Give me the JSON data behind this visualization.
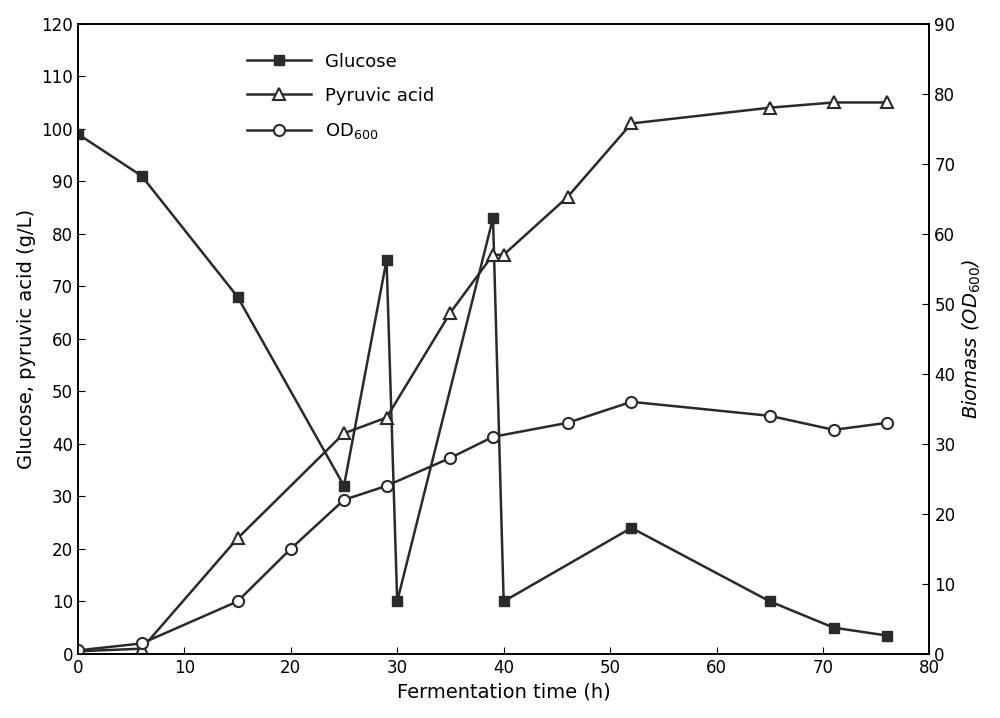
{
  "glucose_x": [
    0,
    6,
    15,
    25,
    29,
    30,
    39,
    40,
    52,
    65,
    71,
    76
  ],
  "glucose_y": [
    99,
    91,
    68,
    32,
    75,
    10,
    83,
    10,
    24,
    10,
    5,
    3.5
  ],
  "pyruvic_x": [
    0,
    6,
    15,
    25,
    29,
    35,
    39,
    40,
    46,
    52,
    65,
    71,
    76
  ],
  "pyruvic_y": [
    0.5,
    1,
    22,
    42,
    45,
    65,
    76,
    76,
    87,
    101,
    104,
    105,
    105
  ],
  "od_x": [
    0,
    6,
    15,
    20,
    25,
    29,
    35,
    39,
    46,
    52,
    65,
    71,
    76
  ],
  "od_y": [
    0.5,
    1.5,
    7.5,
    15,
    22,
    24,
    28,
    31,
    33,
    36,
    34,
    32,
    33
  ],
  "xlabel": "Fermentation time (h)",
  "ylabel_left": "Glucose, pyruvic acid (g/L)",
  "ylabel_right": "Biomass ($\\mathit{OD}_{600}$)",
  "xlim": [
    0,
    80
  ],
  "ylim_left": [
    0,
    120
  ],
  "ylim_right": [
    0,
    90
  ],
  "xticks": [
    0,
    10,
    20,
    30,
    40,
    50,
    60,
    70,
    80
  ],
  "yticks_left": [
    0,
    10,
    20,
    30,
    40,
    50,
    60,
    70,
    80,
    90,
    100,
    110,
    120
  ],
  "yticks_right": [
    0,
    10,
    20,
    30,
    40,
    50,
    60,
    70,
    80,
    90
  ],
  "legend_glucose": "Glucose",
  "legend_pyruvic": "Pyruvic acid",
  "legend_od": "OD$_{600}$",
  "line_color": "#2a2a2a",
  "background_color": "#ffffff",
  "fontsize_label": 14,
  "fontsize_tick": 12,
  "fontsize_legend": 13
}
